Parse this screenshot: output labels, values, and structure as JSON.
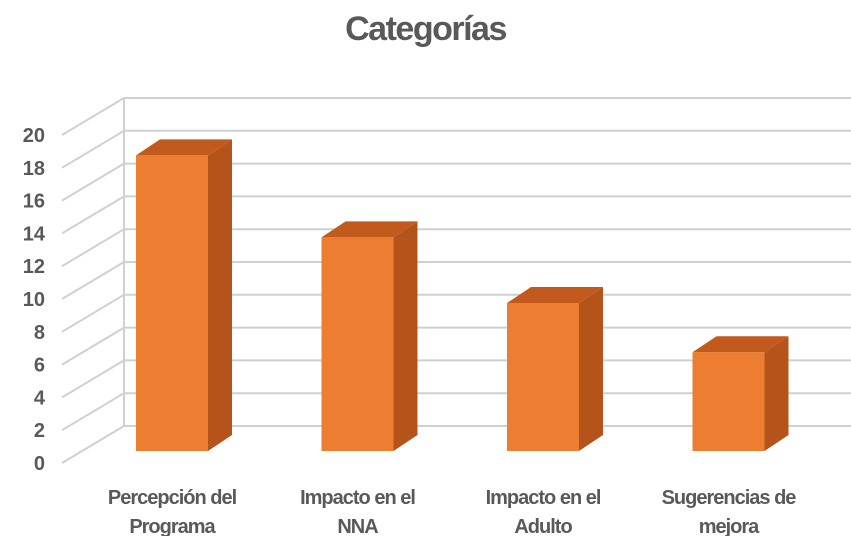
{
  "chart_data": {
    "type": "bar",
    "title": "Categorías",
    "xlabel": "",
    "ylabel": "",
    "categories": [
      [
        "Percepción del",
        "Programa"
      ],
      [
        "Impacto en el",
        "NNA"
      ],
      [
        "Impacto en el",
        "Adulto"
      ],
      [
        "Sugerencias de",
        "mejora"
      ]
    ],
    "values": [
      19,
      14,
      10,
      7
    ],
    "ylim": [
      0,
      20
    ],
    "yticks": [
      "0",
      "2",
      "4",
      "6",
      "8",
      "10",
      "12",
      "14",
      "16",
      "18",
      "20"
    ],
    "three_d": true,
    "grid": true,
    "legend": "none",
    "colors": {
      "bar_front": "#ED7D31",
      "bar_side": "#B5541A",
      "bar_top": "#C25A1E",
      "grid": "#D0D0D0",
      "text": "#595959"
    }
  }
}
